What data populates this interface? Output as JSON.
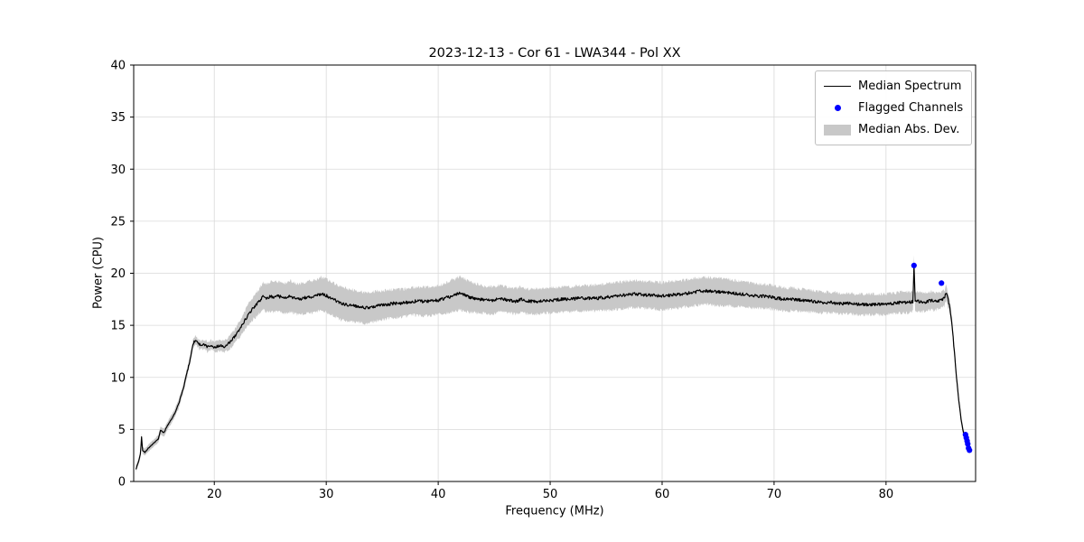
{
  "chart_data": {
    "type": "line",
    "title": "2023-12-13 - Cor 61 - LWA344 - Pol XX",
    "xlabel": "Frequency (MHz)",
    "ylabel": "Power (CPU)",
    "xlim": [
      12.8,
      88.0
    ],
    "ylim": [
      0,
      40
    ],
    "xticks": [
      20,
      30,
      40,
      50,
      60,
      70,
      80
    ],
    "yticks": [
      0,
      5,
      10,
      15,
      20,
      25,
      30,
      35,
      40
    ],
    "grid": true,
    "legend_position": "upper right",
    "background": "#ffffff",
    "grid_color": "#d9d9d9",
    "series": [
      {
        "name": "Median Spectrum",
        "kind": "line",
        "color": "#000000",
        "points": [
          [
            13.0,
            1.2
          ],
          [
            13.2,
            1.8
          ],
          [
            13.4,
            2.6
          ],
          [
            13.5,
            4.3
          ],
          [
            13.6,
            3.0
          ],
          [
            13.8,
            2.8
          ],
          [
            14.1,
            3.2
          ],
          [
            14.5,
            3.6
          ],
          [
            15.0,
            4.1
          ],
          [
            15.2,
            4.9
          ],
          [
            15.5,
            4.7
          ],
          [
            16.0,
            5.7
          ],
          [
            16.4,
            6.4
          ],
          [
            16.8,
            7.4
          ],
          [
            17.2,
            8.8
          ],
          [
            17.6,
            10.6
          ],
          [
            17.9,
            12.0
          ],
          [
            18.1,
            13.2
          ],
          [
            18.3,
            13.6
          ],
          [
            18.5,
            13.3
          ],
          [
            18.8,
            13.1
          ],
          [
            19.1,
            13.2
          ],
          [
            19.4,
            12.9
          ],
          [
            19.7,
            13.1
          ],
          [
            20.0,
            12.9
          ],
          [
            20.3,
            13.0
          ],
          [
            20.6,
            13.1
          ],
          [
            20.9,
            12.9
          ],
          [
            21.2,
            13.2
          ],
          [
            21.5,
            13.5
          ],
          [
            21.8,
            13.9
          ],
          [
            22.1,
            14.4
          ],
          [
            22.5,
            15.0
          ],
          [
            23.0,
            16.0
          ],
          [
            23.5,
            16.7
          ],
          [
            24.0,
            17.3
          ],
          [
            24.4,
            17.8
          ],
          [
            24.7,
            17.6
          ],
          [
            25.0,
            17.8
          ],
          [
            25.3,
            17.7
          ],
          [
            25.7,
            17.8
          ],
          [
            26.0,
            17.7
          ],
          [
            26.4,
            17.6
          ],
          [
            26.8,
            17.8
          ],
          [
            27.2,
            17.6
          ],
          [
            27.6,
            17.5
          ],
          [
            28.0,
            17.6
          ],
          [
            28.4,
            17.8
          ],
          [
            28.8,
            17.7
          ],
          [
            29.2,
            17.9
          ],
          [
            29.5,
            18.0
          ],
          [
            29.9,
            17.9
          ],
          [
            30.3,
            17.7
          ],
          [
            30.8,
            17.4
          ],
          [
            31.3,
            17.1
          ],
          [
            31.8,
            17.0
          ],
          [
            32.3,
            16.9
          ],
          [
            32.8,
            16.8
          ],
          [
            33.3,
            16.7
          ],
          [
            33.8,
            16.7
          ],
          [
            34.3,
            16.8
          ],
          [
            34.8,
            16.9
          ],
          [
            35.4,
            17.0
          ],
          [
            36.0,
            17.1
          ],
          [
            36.6,
            17.1
          ],
          [
            37.2,
            17.2
          ],
          [
            37.8,
            17.3
          ],
          [
            38.5,
            17.3
          ],
          [
            39.2,
            17.3
          ],
          [
            40.0,
            17.4
          ],
          [
            40.6,
            17.6
          ],
          [
            41.2,
            17.8
          ],
          [
            41.7,
            18.0
          ],
          [
            42.0,
            18.1
          ],
          [
            42.4,
            17.9
          ],
          [
            42.8,
            17.7
          ],
          [
            43.3,
            17.6
          ],
          [
            43.8,
            17.5
          ],
          [
            44.4,
            17.4
          ],
          [
            45.0,
            17.4
          ],
          [
            45.4,
            17.6
          ],
          [
            45.8,
            17.5
          ],
          [
            46.4,
            17.4
          ],
          [
            47.0,
            17.3
          ],
          [
            47.4,
            17.5
          ],
          [
            47.8,
            17.3
          ],
          [
            48.4,
            17.3
          ],
          [
            49.0,
            17.3
          ],
          [
            49.6,
            17.4
          ],
          [
            50.2,
            17.4
          ],
          [
            51.0,
            17.5
          ],
          [
            51.8,
            17.5
          ],
          [
            52.6,
            17.6
          ],
          [
            53.4,
            17.6
          ],
          [
            54.2,
            17.6
          ],
          [
            55.0,
            17.7
          ],
          [
            55.8,
            17.8
          ],
          [
            56.6,
            17.9
          ],
          [
            57.4,
            18.0
          ],
          [
            58.0,
            18.0
          ],
          [
            58.6,
            17.9
          ],
          [
            59.2,
            17.9
          ],
          [
            60.0,
            17.8
          ],
          [
            60.8,
            17.9
          ],
          [
            61.6,
            18.0
          ],
          [
            62.4,
            18.1
          ],
          [
            63.0,
            18.2
          ],
          [
            63.6,
            18.3
          ],
          [
            64.2,
            18.3
          ],
          [
            64.8,
            18.2
          ],
          [
            65.5,
            18.2
          ],
          [
            66.2,
            18.1
          ],
          [
            67.0,
            18.0
          ],
          [
            67.8,
            17.9
          ],
          [
            68.6,
            17.8
          ],
          [
            69.4,
            17.8
          ],
          [
            70.2,
            17.6
          ],
          [
            71.0,
            17.5
          ],
          [
            71.8,
            17.5
          ],
          [
            72.6,
            17.4
          ],
          [
            73.4,
            17.3
          ],
          [
            74.2,
            17.2
          ],
          [
            75.0,
            17.2
          ],
          [
            75.8,
            17.1
          ],
          [
            76.6,
            17.1
          ],
          [
            77.4,
            17.0
          ],
          [
            78.2,
            17.0
          ],
          [
            79.0,
            17.0
          ],
          [
            79.8,
            17.0
          ],
          [
            80.6,
            17.1
          ],
          [
            81.4,
            17.2
          ],
          [
            82.0,
            17.2
          ],
          [
            82.4,
            17.3
          ],
          [
            82.5,
            20.7
          ],
          [
            82.6,
            17.3
          ],
          [
            83.0,
            17.3
          ],
          [
            83.5,
            17.2
          ],
          [
            84.0,
            17.4
          ],
          [
            84.5,
            17.3
          ],
          [
            85.0,
            17.5
          ],
          [
            85.2,
            17.6
          ],
          [
            85.4,
            18.2
          ],
          [
            85.5,
            17.6
          ],
          [
            85.7,
            16.8
          ],
          [
            85.9,
            15.0
          ],
          [
            86.1,
            12.5
          ],
          [
            86.3,
            10.0
          ],
          [
            86.5,
            7.8
          ],
          [
            86.7,
            6.0
          ],
          [
            86.9,
            4.8
          ],
          [
            87.1,
            4.1
          ],
          [
            87.3,
            3.5
          ],
          [
            87.5,
            3.0
          ]
        ]
      },
      {
        "name": "Flagged Channels",
        "kind": "scatter",
        "color": "#0000ff",
        "points": [
          [
            82.5,
            20.75
          ],
          [
            84.95,
            19.05
          ],
          [
            87.1,
            4.5
          ],
          [
            87.17,
            4.2
          ],
          [
            87.24,
            3.9
          ],
          [
            87.3,
            3.6
          ],
          [
            87.37,
            3.2
          ],
          [
            87.45,
            3.0
          ]
        ]
      },
      {
        "name": "Median Abs. Dev.",
        "kind": "band",
        "color": "#c8c8c8",
        "halfwidth": [
          [
            13,
            0.3
          ],
          [
            16,
            0.4
          ],
          [
            20,
            0.45
          ],
          [
            22,
            0.7
          ],
          [
            23.5,
            1.1
          ],
          [
            25,
            1.4
          ],
          [
            28,
            1.5
          ],
          [
            30,
            1.6
          ],
          [
            33,
            1.5
          ],
          [
            35,
            1.4
          ],
          [
            37,
            1.3
          ],
          [
            40,
            1.4
          ],
          [
            42,
            1.6
          ],
          [
            44,
            1.3
          ],
          [
            48,
            1.2
          ],
          [
            52,
            1.2
          ],
          [
            56,
            1.3
          ],
          [
            62,
            1.3
          ],
          [
            65,
            1.3
          ],
          [
            68,
            1.2
          ],
          [
            71,
            1.1
          ],
          [
            75,
            1.0
          ],
          [
            82,
            1.0
          ],
          [
            84,
            0.9
          ],
          [
            85.5,
            0.7
          ],
          [
            86.2,
            0.5
          ],
          [
            87,
            0.35
          ],
          [
            87.5,
            0.3
          ]
        ]
      }
    ]
  }
}
